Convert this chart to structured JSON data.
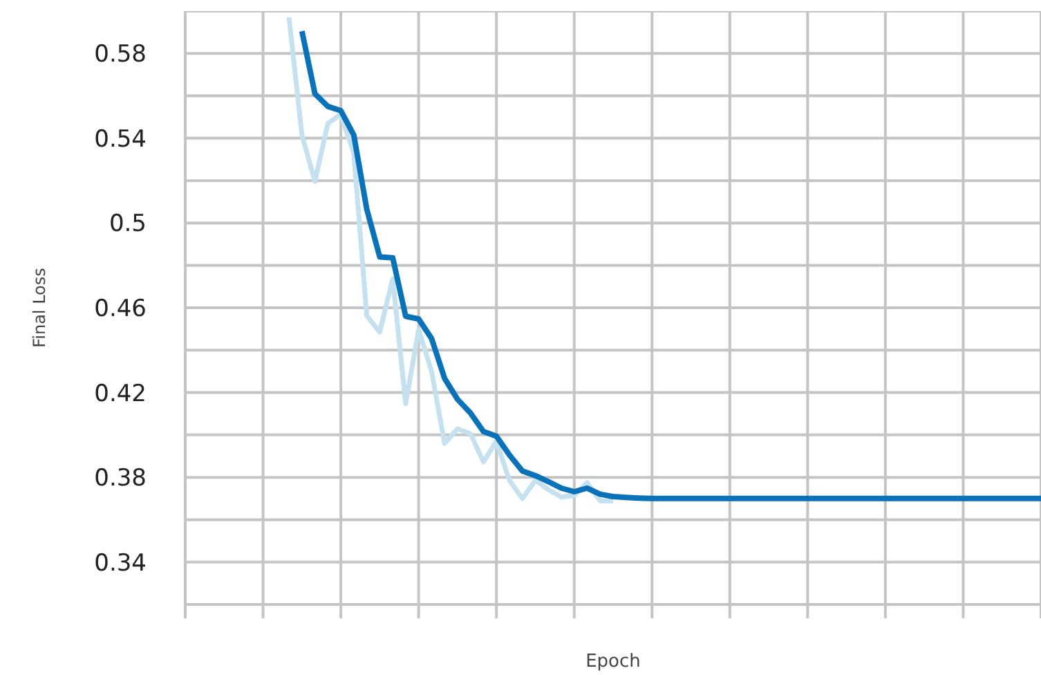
{
  "chart_data": {
    "type": "line",
    "xlabel": "Epoch",
    "ylabel": "Final Loss",
    "categories": [
      null,
      null,
      null,
      null,
      null,
      null,
      null,
      null,
      null,
      null,
      null,
      null,
      null,
      null,
      null,
      null,
      null,
      null,
      null,
      null,
      null,
      null,
      null,
      null,
      null,
      null,
      null,
      null,
      null,
      null,
      null,
      null,
      null,
      null,
      null,
      null,
      null,
      null,
      null,
      null,
      null,
      null,
      null,
      null,
      null,
      null,
      null,
      null,
      null,
      null,
      null,
      null,
      null,
      null,
      null,
      null,
      null,
      null,
      null,
      null,
      null,
      null,
      null,
      null,
      null,
      null,
      null
    ],
    "series": [
      {
        "color": "#c5e0ef",
        "values": [
          null,
          null,
          null,
          null,
          null,
          null,
          null,
          null,
          0.597,
          0.5415,
          0.5196,
          0.547,
          0.5513,
          0.5328,
          0.4562,
          0.4486,
          0.4737,
          0.4147,
          0.4497,
          0.43,
          0.396,
          0.4029,
          0.4005,
          0.3873,
          0.397,
          0.3786,
          0.3699,
          0.3786,
          0.3742,
          0.3707,
          0.3714,
          0.3775,
          0.3689,
          0.3689,
          null,
          null,
          null,
          null,
          null,
          null,
          null,
          null,
          null,
          null,
          null,
          null,
          null,
          null,
          null,
          null,
          null,
          null,
          null,
          null,
          null,
          null,
          null,
          null,
          null,
          null,
          null,
          null,
          null,
          null,
          null,
          null,
          null
        ]
      },
      {
        "color": "#0a72b8",
        "values": [
          null,
          null,
          null,
          null,
          null,
          null,
          null,
          null,
          null,
          0.5905,
          0.561,
          0.555,
          0.553,
          0.5415,
          0.5065,
          0.484,
          0.4836,
          0.456,
          0.4547,
          0.4455,
          0.4267,
          0.4168,
          0.4103,
          0.4016,
          0.3994,
          0.3906,
          0.383,
          0.3808,
          0.378,
          0.3749,
          0.3732,
          0.3749,
          0.372,
          0.3709,
          0.3705,
          0.3702,
          0.37,
          0.37,
          0.37,
          0.37,
          0.37,
          0.37,
          0.37,
          0.37,
          0.37,
          0.37,
          0.37,
          0.37,
          0.37,
          0.37,
          0.37,
          0.37,
          0.37,
          0.37,
          0.37,
          0.37,
          0.37,
          0.37,
          0.37,
          0.37,
          0.37,
          0.37,
          0.37,
          0.37,
          0.37,
          0.37,
          0.37
        ]
      }
    ],
    "ylim": [
      0.32,
      0.6
    ],
    "yticks": [
      {
        "value": 0.32,
        "label": null
      },
      0.34,
      {
        "value": 0.36,
        "label": null
      },
      0.38,
      {
        "value": 0.4,
        "label": null
      },
      0.42,
      {
        "value": 0.44,
        "label": null
      },
      0.46,
      {
        "value": 0.48,
        "label": null
      },
      0.5,
      {
        "value": 0.52,
        "label": null
      },
      0.54,
      {
        "value": 0.56,
        "label": null
      },
      0.58,
      {
        "value": 0.6,
        "label": null
      }
    ],
    "grid": true,
    "marker": "none",
    "line_style": "solid"
  }
}
